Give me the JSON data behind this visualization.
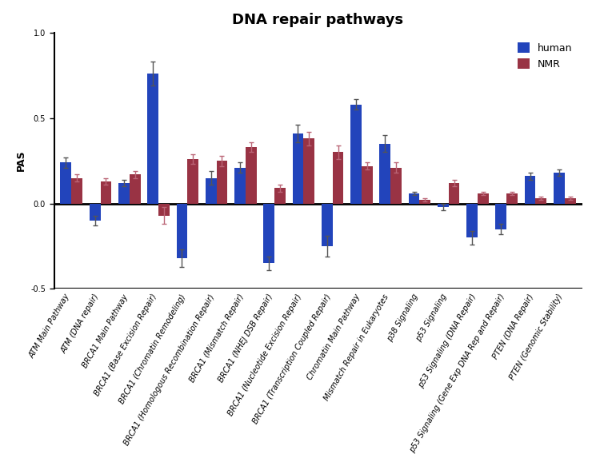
{
  "title": "DNA repair pathways",
  "ylabel": "PAS",
  "ylim": [
    -0.5,
    1.0
  ],
  "yticks": [
    -0.5,
    0.0,
    0.5,
    1.0
  ],
  "categories": [
    "ATM Main Pathway",
    "ATM (DNA repair)",
    "BRCA1 Main Pathway",
    "BRCA1 (Base Excision Repair)",
    "BRCA1 (Chromatin Remodeling)",
    "BRCA1 (Homologous Recombination Repair)",
    "BRCA1 (Mismatch Repair)",
    "BRCA1 (NHEJ DSB Repair)",
    "BRCA1 (Nucleotide Excision Repair)",
    "BRCA1 (Transcription Coupled Repair)",
    "Chromatin Main Pathway",
    "Mismatch Repair in Eukaryotes",
    "p38 Signaling",
    "p53 Signaling",
    "p53 Signaling (DNA Repair)",
    "p53 Signaling (Gene Exp DNA Rep and Repair)",
    "PTEN (DNA Repair)",
    "PTEN (Genomic Stability)"
  ],
  "human_values": [
    0.24,
    -0.1,
    0.12,
    0.76,
    -0.32,
    0.15,
    0.21,
    -0.35,
    0.41,
    -0.25,
    0.58,
    0.35,
    0.06,
    -0.02,
    -0.2,
    -0.15,
    0.16,
    0.18
  ],
  "nmr_values": [
    0.15,
    0.13,
    0.17,
    -0.07,
    0.26,
    0.25,
    0.33,
    0.09,
    0.38,
    0.3,
    0.22,
    0.21,
    0.02,
    0.12,
    0.06,
    0.06,
    0.03,
    0.03
  ],
  "human_errors": [
    0.03,
    0.03,
    0.02,
    0.07,
    0.05,
    0.04,
    0.03,
    0.04,
    0.05,
    0.06,
    0.03,
    0.05,
    0.01,
    0.02,
    0.04,
    0.03,
    0.02,
    0.02
  ],
  "nmr_errors": [
    0.02,
    0.02,
    0.02,
    0.05,
    0.03,
    0.03,
    0.03,
    0.02,
    0.04,
    0.04,
    0.02,
    0.03,
    0.01,
    0.02,
    0.01,
    0.01,
    0.01,
    0.01
  ],
  "human_color": "#2244BB",
  "nmr_color": "#993344",
  "human_error_color": "#555555",
  "nmr_error_color": "#BB6677",
  "bar_width": 0.38,
  "legend_labels": [
    "human",
    "NMR"
  ],
  "title_fontsize": 13,
  "label_fontsize": 9,
  "tick_fontsize": 7,
  "legend_fontsize": 9
}
